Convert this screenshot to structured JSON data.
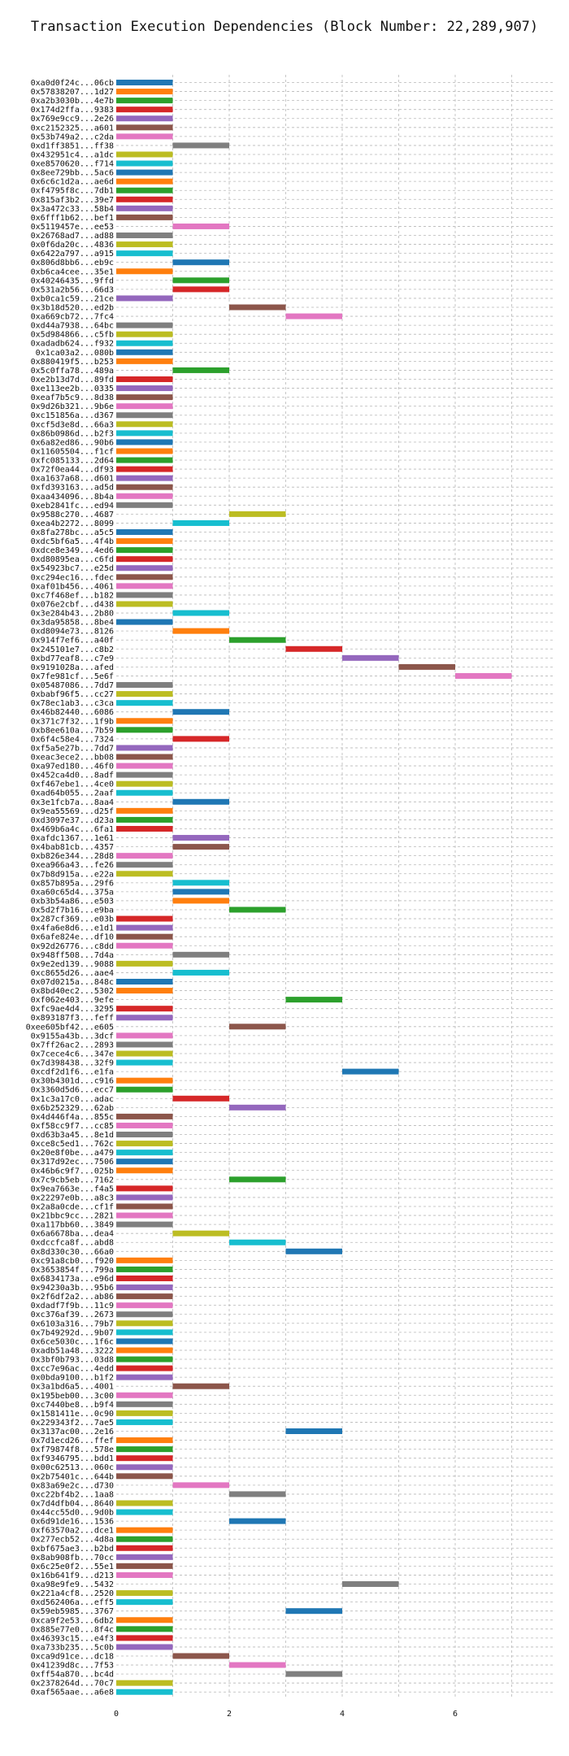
{
  "chart_data": {
    "type": "bar",
    "orientation": "horizontal",
    "title": "Transaction Execution Dependencies (Block Number: 22,289,907)",
    "xlabel": "",
    "ylabel": "",
    "xlim": [
      0,
      7.5
    ],
    "xticks": [
      0,
      2,
      4,
      6
    ],
    "grid": true,
    "categories": [
      "0xa0d0f24c...06cb",
      "0x57838207...1d27",
      "0xa2b3030b...4e7b",
      "0x174d2ffa...9383",
      "0x769e9cc9...2e26",
      "0xc2152325...a601",
      "0x53b749a2...c2da",
      "0xd1ff3851...ff38",
      "0x432951c4...a1dc",
      "0xe8570620...f714",
      "0x8ee729bb...5ac6",
      "0x6c6c1d2a...ae6d",
      "0xf4795f8c...7db1",
      "0x815af3b2...39e7",
      "0x3a472c33...58b4",
      "0x6fff1b62...bef1",
      "0x5119457e...ee53",
      "0x26768ad7...ad88",
      "0x0f6da20c...4836",
      "0x6422a797...a915",
      "0x806d8bb6...eb9c",
      "0xb6ca4cee...35e1",
      "0x40246435...9ffd",
      "0x531a2b56...66d3",
      "0xb0ca1c59...21ce",
      "0x3b18d520...ed2b",
      "0xa669cb72...7fc4",
      "0xd44a7938...64bc",
      "0x5d984866...c5fb",
      "0xadadb624...f932",
      "0x1ca03a2...080b",
      "0x880419f5...b253",
      "0x5c0ffa78...489a",
      "0xe2b13d7d...89fd",
      "0xe113ee2b...0335",
      "0xeaf7b5c9...8d38",
      "0x9d26b321...9b6e",
      "0xc151856a...d367",
      "0xcf5d3e8d...66a3",
      "0x86b0986d...b2f3",
      "0x6a82ed86...90b6",
      "0x11605504...f1cf",
      "0xfc085133...2d64",
      "0x72f0ea44...df93",
      "0xa1637a68...d601",
      "0xfd393163...ad5d",
      "0xaa434096...8b4a",
      "0xeb2841fc...ed94",
      "0x9588c270...4687",
      "0xea4b2272...8099",
      "0x8fa278bc...a5c5",
      "0xdc5bf6a5...4f4b",
      "0xdce8e349...4ed6",
      "0xd80895ea...c6fd",
      "0x54923bc7...e25d",
      "0xc294ec16...fdec",
      "0xaf01b456...4061",
      "0xc7f468ef...b182",
      "0x076e2cbf...d438",
      "0x3e284b43...2b80",
      "0x3da95858...8be4",
      "0xd8094e73...8126",
      "0x914f7ef6...a40f",
      "0x245101e7...c8b2",
      "0xbd77eaf8...c7e9",
      "0x9191028a...afed",
      "0x7fe981cf...5e6f",
      "0x05487086...7dd7",
      "0xbabf96f5...cc27",
      "0x78ec1ab3...c3ca",
      "0x46b82440...6086",
      "0x371c7f32...1f9b",
      "0xb8ee610a...7b59",
      "0x6f4c58e4...7324",
      "0xf5a5e27b...7dd7",
      "0xeac3ece2...bb08",
      "0xa97ed180...46f0",
      "0x452ca4d0...8adf",
      "0xf467ebe1...4ce0",
      "0xad64b055...2aaf",
      "0x3e1fcb7a...8aa4",
      "0x9ea55569...d25f",
      "0xd3097e37...d23a",
      "0x469b6a4c...6fa1",
      "0xafdc1367...1e61",
      "0x4bab81cb...4357",
      "0xb826e344...28d8",
      "0xea966a43...fe26",
      "0x7b8d915a...e22a",
      "0x857b895a...29f6",
      "0xa60c65d4...375a",
      "0xb3b54a86...e503",
      "0x5d2f7b16...e9ba",
      "0x287cf369...e03b",
      "0x4fa6e8d6...e1d1",
      "0x6afe824e...df10",
      "0x92d26776...c8dd",
      "0x948ff508...7d4a",
      "0x9e2ed139...9088",
      "0xc8655d26...aae4",
      "0x07d0215a...848c",
      "0x8bd40ec2...5302",
      "0xf062e403...9efe",
      "0xfc9ae4d4...3295",
      "0x893187f3...feff",
      "0xee605bf42...e605",
      "0x9155a43b...3dcf",
      "0x7ff26ac2...2893",
      "0x7cece4c6...347e",
      "0x7d398438...32f9",
      "0xcdf2d1f6...e1fa",
      "0x30b4301d...c916",
      "0x3360d5d6...ecc7",
      "0x1c3a17c0...adac",
      "0x6b252329...62ab",
      "0x4d446f4a...855c",
      "0xf58cc9f7...cc85",
      "0xd63b3a45...8e1d",
      "0xce8c5ed1...762c",
      "0x20e8f0be...a479",
      "0x317d92ec...7506",
      "0x46b6c9f7...025b",
      "0x7c9cb5eb...7162",
      "0x9ea7663e...f4a5",
      "0x22297e0b...a8c3",
      "0x2a8a0cde...cf1f",
      "0x21bbc9cc...2821",
      "0xa117bb60...3849",
      "0x6a6678ba...dea4",
      "0xdccfca8f...abd8",
      "0x8d330c30...66a0",
      "0xc91a8cb0...f920",
      "0x3653854f...799a",
      "0x6834173a...e96d",
      "0x94230a3b...95b6",
      "0x2f6df2a2...ab86",
      "0xdadf7f9b...11c9",
      "0xc376af39...2673",
      "0x6103a316...79b7",
      "0x7b49292d...9b07",
      "0x6ce5030c...1f6c",
      "0xadb51a48...3222",
      "0x3bf0b793...03d8",
      "0xcc7e96ac...4edd",
      "0x0bda9100...b1f2",
      "0x3a1bd6a5...4001",
      "0x195beb00...3c00",
      "0xc7440be8...b9f4",
      "0x1581411e...0c90",
      "0x229343f2...7ae5",
      "0x3137ac00...2e16",
      "0x7d1ecd26...ffef",
      "0xf79874f8...578e",
      "0xf9346795...bdd1",
      "0x00c62513...060c",
      "0x2b75401c...644b",
      "0x83a69e2c...d730",
      "0xc22bf4b2...1aa8",
      "0x7d4dfb04...8640",
      "0x44cc55d0...9d0b",
      "0x6d91de16...1536",
      "0xf63570a2...dce1",
      "0x277ecb52...4d8a",
      "0xbf675ae3...b2bd",
      "0x8ab908fb...70cc",
      "0x6c25e0f2...55e1",
      "0x16b641f9...d213",
      "0xa98e9fe9...5432",
      "0x221a4cf8...2520",
      "0xd562406a...eff5",
      "0x59eb5985...3767",
      "0xca9f2e53...6db2",
      "0x885e77e0...8f4c",
      "0x46393c15...e4f3",
      "0xa733b235...5c0b",
      "0xca9d91ce...dc18",
      "0x41239d8c...7f53",
      "0xff54a870...bc4d",
      "0x2378264d...70c7",
      "0xaf565aae...a6e8"
    ],
    "starts": [
      0,
      0,
      0,
      0,
      0,
      0,
      0,
      1,
      0,
      0,
      0,
      0,
      0,
      0,
      0,
      0,
      1,
      0,
      0,
      0,
      1,
      0,
      1,
      1,
      0,
      2,
      3,
      0,
      0,
      0,
      0,
      0,
      1,
      0,
      0,
      0,
      0,
      0,
      0,
      0,
      0,
      0,
      0,
      0,
      0,
      0,
      0,
      0,
      2,
      1,
      0,
      0,
      0,
      0,
      0,
      0,
      0,
      0,
      0,
      1,
      0,
      1,
      2,
      3,
      4,
      5,
      6,
      0,
      0,
      0,
      1,
      0,
      0,
      1,
      0,
      0,
      0,
      0,
      0,
      0,
      1,
      0,
      0,
      0,
      1,
      1,
      0,
      0,
      0,
      1,
      1,
      1,
      2,
      0,
      0,
      0,
      0,
      1,
      0,
      1,
      0,
      0,
      3,
      0,
      0,
      2,
      0,
      0,
      0,
      0,
      4,
      0,
      0,
      1,
      2,
      0,
      0,
      0,
      0,
      0,
      0,
      0,
      2,
      0,
      0,
      0,
      0,
      0,
      1,
      2,
      3,
      0,
      0,
      0,
      0,
      0,
      0,
      0,
      0,
      0,
      0,
      0,
      0,
      0,
      0,
      1,
      0,
      0,
      0,
      0,
      3,
      0,
      0,
      0,
      0,
      0,
      1,
      2,
      0,
      0,
      2,
      0,
      0,
      0,
      0,
      0,
      0,
      4,
      0,
      0,
      3,
      0,
      0,
      0,
      0,
      1,
      2,
      3,
      0,
      0
    ],
    "colors": [
      "#1f77b4",
      "#ff7f0e",
      "#2ca02c",
      "#d62728",
      "#9467bd",
      "#8c564b",
      "#e377c2",
      "#7f7f7f",
      "#bcbd22",
      "#17becf",
      "#1f77b4",
      "#ff7f0e",
      "#2ca02c",
      "#d62728",
      "#9467bd",
      "#8c564b",
      "#e377c2",
      "#7f7f7f",
      "#bcbd22",
      "#17becf",
      "#1f77b4",
      "#ff7f0e",
      "#2ca02c",
      "#d62728",
      "#9467bd",
      "#8c564b",
      "#e377c2",
      "#7f7f7f",
      "#bcbd22",
      "#17becf",
      "#1f77b4",
      "#ff7f0e",
      "#2ca02c",
      "#d62728",
      "#9467bd",
      "#8c564b",
      "#e377c2",
      "#7f7f7f",
      "#bcbd22",
      "#17becf",
      "#1f77b4",
      "#ff7f0e",
      "#2ca02c",
      "#d62728",
      "#9467bd",
      "#8c564b",
      "#e377c2",
      "#7f7f7f",
      "#bcbd22",
      "#17becf",
      "#1f77b4",
      "#ff7f0e",
      "#2ca02c",
      "#d62728",
      "#9467bd",
      "#8c564b",
      "#e377c2",
      "#7f7f7f",
      "#bcbd22",
      "#17becf",
      "#1f77b4",
      "#ff7f0e",
      "#2ca02c",
      "#d62728",
      "#9467bd",
      "#8c564b",
      "#e377c2",
      "#7f7f7f",
      "#bcbd22",
      "#17becf",
      "#1f77b4",
      "#ff7f0e",
      "#2ca02c",
      "#d62728",
      "#9467bd",
      "#8c564b",
      "#e377c2",
      "#7f7f7f",
      "#bcbd22",
      "#17becf",
      "#1f77b4",
      "#ff7f0e",
      "#2ca02c",
      "#d62728",
      "#9467bd",
      "#8c564b",
      "#e377c2",
      "#7f7f7f",
      "#bcbd22",
      "#17becf",
      "#1f77b4",
      "#ff7f0e",
      "#2ca02c",
      "#d62728",
      "#9467bd",
      "#8c564b",
      "#e377c2",
      "#7f7f7f",
      "#bcbd22",
      "#17becf",
      "#1f77b4",
      "#ff7f0e",
      "#2ca02c",
      "#d62728",
      "#9467bd",
      "#8c564b",
      "#e377c2",
      "#7f7f7f",
      "#bcbd22",
      "#17becf",
      "#1f77b4",
      "#ff7f0e",
      "#2ca02c",
      "#d62728",
      "#9467bd",
      "#8c564b",
      "#e377c2",
      "#7f7f7f",
      "#bcbd22",
      "#17becf",
      "#1f77b4",
      "#ff7f0e",
      "#2ca02c",
      "#d62728",
      "#9467bd",
      "#8c564b",
      "#e377c2",
      "#7f7f7f",
      "#bcbd22",
      "#17becf",
      "#1f77b4",
      "#ff7f0e",
      "#2ca02c",
      "#d62728",
      "#9467bd",
      "#8c564b",
      "#e377c2",
      "#7f7f7f",
      "#bcbd22",
      "#17becf",
      "#1f77b4",
      "#ff7f0e",
      "#2ca02c",
      "#d62728",
      "#9467bd",
      "#8c564b",
      "#e377c2",
      "#7f7f7f",
      "#bcbd22",
      "#17becf",
      "#1f77b4",
      "#ff7f0e",
      "#2ca02c",
      "#d62728",
      "#9467bd",
      "#8c564b",
      "#e377c2",
      "#7f7f7f",
      "#bcbd22",
      "#17becf",
      "#1f77b4",
      "#ff7f0e",
      "#2ca02c",
      "#d62728",
      "#9467bd",
      "#8c564b",
      "#e377c2",
      "#7f7f7f",
      "#bcbd22",
      "#17becf",
      "#1f77b4",
      "#ff7f0e",
      "#2ca02c",
      "#d62728",
      "#9467bd",
      "#8c564b",
      "#e377c2",
      "#7f7f7f",
      "#bcbd22",
      "#17becf"
    ],
    "bar_length": 1
  }
}
